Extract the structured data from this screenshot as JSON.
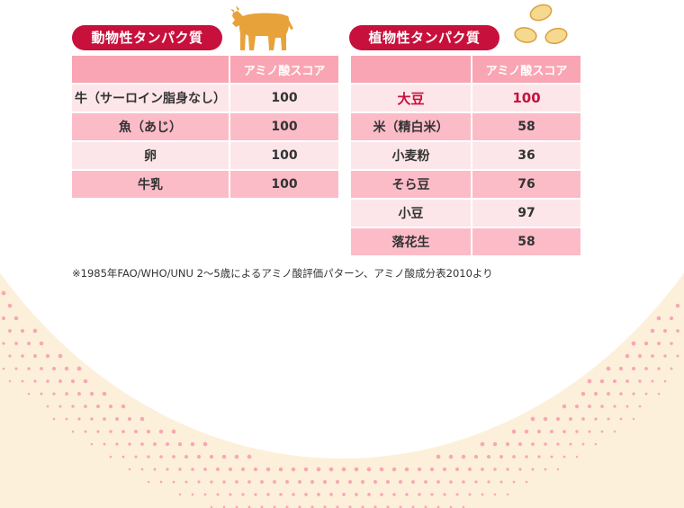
{
  "colors": {
    "accent": "#c8103c",
    "header_pink": "#f9a5b3",
    "row_light": "#fde6ea",
    "row_dark": "#fbbcc8",
    "cream": "#fcf0da",
    "dot": "#f7a8b2",
    "icon_orange": "#e8a23a",
    "bean": "#f5d98e"
  },
  "animal": {
    "title": "動物性タンパク質",
    "icon": "cow-icon",
    "header_score": "アミノ酸スコア",
    "rows": [
      {
        "name": "牛（サーロイン脂身なし）",
        "score": "100"
      },
      {
        "name": "魚（あじ）",
        "score": "100"
      },
      {
        "name": "卵",
        "score": "100"
      },
      {
        "name": "牛乳",
        "score": "100"
      }
    ]
  },
  "plant": {
    "title": "植物性タンパク質",
    "icon": "beans-icon",
    "header_score": "アミノ酸スコア",
    "rows": [
      {
        "name": "大豆",
        "score": "100"
      },
      {
        "name": "米（精白米）",
        "score": "58"
      },
      {
        "name": "小麦粉",
        "score": "36"
      },
      {
        "name": "そら豆",
        "score": "76"
      },
      {
        "name": "小豆",
        "score": "97"
      },
      {
        "name": "落花生",
        "score": "58"
      }
    ]
  },
  "footnote": "※1985年FAO/WHO/UNU 2～5歳によるアミノ酸評価パターン、アミノ酸成分表2010より"
}
